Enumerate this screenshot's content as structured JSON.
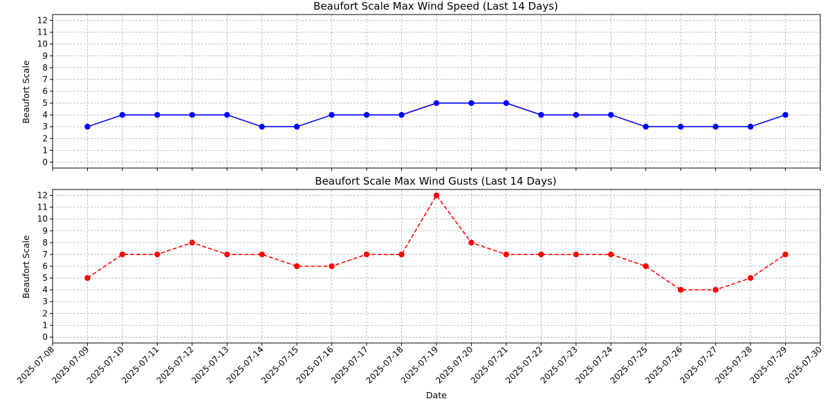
{
  "chart_data": [
    {
      "type": "line",
      "title": "Beaufort Scale Max Wind Speed (Last 14 Days)",
      "xlabel": "",
      "ylabel": "Beaufort Scale",
      "x": [
        "2025-07-09",
        "2025-07-10",
        "2025-07-11",
        "2025-07-12",
        "2025-07-13",
        "2025-07-14",
        "2025-07-15",
        "2025-07-16",
        "2025-07-17",
        "2025-07-18",
        "2025-07-19",
        "2025-07-20",
        "2025-07-21",
        "2025-07-22",
        "2025-07-23",
        "2025-07-24",
        "2025-07-25",
        "2025-07-26",
        "2025-07-27",
        "2025-07-28",
        "2025-07-29"
      ],
      "series": [
        {
          "values": [
            3,
            4,
            4,
            4,
            4,
            3,
            3,
            4,
            4,
            4,
            5,
            5,
            5,
            4,
            4,
            4,
            3,
            3,
            3,
            3,
            4
          ],
          "color": "#0000ff",
          "line_style": "solid",
          "marker": "circle"
        }
      ],
      "xlim": [
        "2025-07-08",
        "2025-07-30"
      ],
      "ylim": [
        -0.5,
        12.5
      ],
      "yticks": [
        0,
        1,
        2,
        3,
        4,
        5,
        6,
        7,
        8,
        9,
        10,
        11,
        12
      ],
      "grid": true
    },
    {
      "type": "line",
      "title": "Beaufort Scale Max Wind Gusts (Last 14 Days)",
      "xlabel": "Date",
      "ylabel": "Beaufort Scale",
      "x": [
        "2025-07-09",
        "2025-07-10",
        "2025-07-11",
        "2025-07-12",
        "2025-07-13",
        "2025-07-14",
        "2025-07-15",
        "2025-07-16",
        "2025-07-17",
        "2025-07-18",
        "2025-07-19",
        "2025-07-20",
        "2025-07-21",
        "2025-07-22",
        "2025-07-23",
        "2025-07-24",
        "2025-07-25",
        "2025-07-26",
        "2025-07-27",
        "2025-07-28",
        "2025-07-29"
      ],
      "series": [
        {
          "values": [
            5,
            7,
            7,
            8,
            7,
            7,
            6,
            6,
            7,
            7,
            12,
            8,
            7,
            7,
            7,
            7,
            6,
            4,
            4,
            5,
            7
          ],
          "color": "#ff0000",
          "line_style": "dashed",
          "marker": "circle"
        }
      ],
      "xlim": [
        "2025-07-08",
        "2025-07-30"
      ],
      "ylim": [
        -0.5,
        12.5
      ],
      "yticks": [
        0,
        1,
        2,
        3,
        4,
        5,
        6,
        7,
        8,
        9,
        10,
        11,
        12
      ],
      "grid": true
    }
  ],
  "xticks": [
    "2025-07-08",
    "2025-07-09",
    "2025-07-10",
    "2025-07-11",
    "2025-07-12",
    "2025-07-13",
    "2025-07-14",
    "2025-07-15",
    "2025-07-16",
    "2025-07-17",
    "2025-07-18",
    "2025-07-19",
    "2025-07-20",
    "2025-07-21",
    "2025-07-22",
    "2025-07-23",
    "2025-07-24",
    "2025-07-25",
    "2025-07-26",
    "2025-07-27",
    "2025-07-28",
    "2025-07-29",
    "2025-07-30"
  ]
}
